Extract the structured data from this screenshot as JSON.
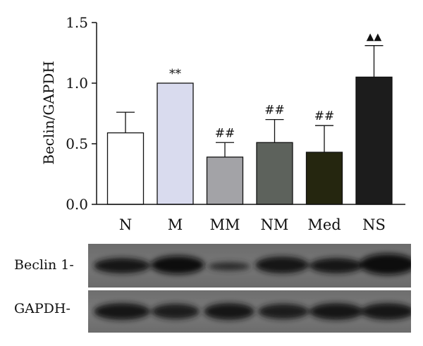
{
  "chart_data": {
    "type": "bar",
    "ylabel": "Beclin/GAPDH",
    "ylim": [
      0,
      1.5
    ],
    "yticks": [
      "0.0",
      "0.5",
      "1.0",
      "1.5"
    ],
    "categories": [
      "N",
      "M",
      "MM",
      "NM",
      "Med",
      "NS"
    ],
    "values": [
      0.59,
      1.0,
      0.39,
      0.51,
      0.43,
      1.05
    ],
    "errors": [
      0.17,
      0.0,
      0.12,
      0.19,
      0.22,
      0.26
    ],
    "annotations": [
      "",
      "**",
      "##",
      "##",
      "##",
      "▲▲"
    ],
    "bar_colors": [
      "#ffffff",
      "#d9dbee",
      "#a3a3a7",
      "#5d625c",
      "#25260f",
      "#1c1c1c"
    ]
  },
  "blot": {
    "rows": [
      {
        "label": "Beclin 1-"
      },
      {
        "label": "GAPDH-"
      }
    ]
  }
}
